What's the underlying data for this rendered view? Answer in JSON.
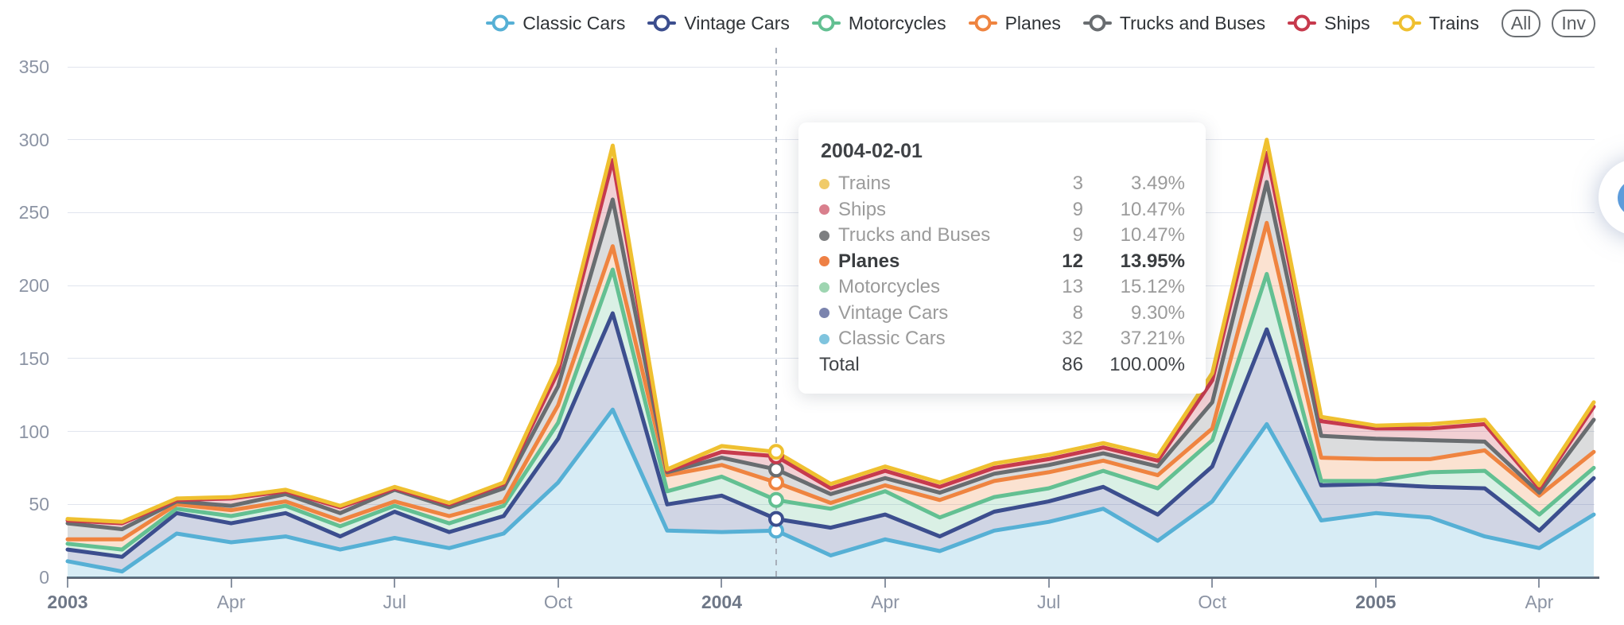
{
  "legend": {
    "all_button": "All",
    "inv_button": "Inv"
  },
  "y_axis": {
    "tick_labels": [
      "0",
      "50",
      "100",
      "150",
      "200",
      "250",
      "300",
      "350"
    ],
    "min": 0,
    "max": 350
  },
  "x_axis": {
    "ticks": [
      {
        "index": 0,
        "label": "2003",
        "bold": true
      },
      {
        "index": 3,
        "label": "Apr",
        "bold": false
      },
      {
        "index": 6,
        "label": "Jul",
        "bold": false
      },
      {
        "index": 9,
        "label": "Oct",
        "bold": false
      },
      {
        "index": 12,
        "label": "2004",
        "bold": true
      },
      {
        "index": 15,
        "label": "Apr",
        "bold": false
      },
      {
        "index": 18,
        "label": "Jul",
        "bold": false
      },
      {
        "index": 21,
        "label": "Oct",
        "bold": false
      },
      {
        "index": 24,
        "label": "2005",
        "bold": true
      },
      {
        "index": 27,
        "label": "Apr",
        "bold": false
      }
    ]
  },
  "chart_data": {
    "type": "area",
    "stacked": true,
    "grid": true,
    "legend_position": "top",
    "title": "",
    "xlabel": "",
    "ylabel": "",
    "ylim": [
      0,
      350
    ],
    "x": [
      "2003-01",
      "2003-02",
      "2003-03",
      "2003-04",
      "2003-05",
      "2003-06",
      "2003-07",
      "2003-08",
      "2003-09",
      "2003-10",
      "2003-11",
      "2003-12",
      "2004-01",
      "2004-02",
      "2004-03",
      "2004-04",
      "2004-05",
      "2004-06",
      "2004-07",
      "2004-08",
      "2004-09",
      "2004-10",
      "2004-11",
      "2004-12",
      "2005-01",
      "2005-02",
      "2005-03",
      "2005-04",
      "2005-05"
    ],
    "series": [
      {
        "name": "Classic Cars",
        "color": "#56b0d5",
        "values": [
          11,
          4,
          30,
          24,
          28,
          19,
          27,
          20,
          30,
          65,
          115,
          32,
          31,
          32,
          15,
          26,
          18,
          32,
          38,
          47,
          25,
          52,
          105,
          39,
          44,
          41,
          28,
          20,
          43
        ]
      },
      {
        "name": "Vintage Cars",
        "color": "#3c4e8e",
        "values": [
          8,
          10,
          14,
          13,
          16,
          9,
          18,
          11,
          12,
          30,
          66,
          18,
          25,
          8,
          19,
          17,
          10,
          13,
          14,
          15,
          18,
          24,
          65,
          24,
          20,
          21,
          33,
          12,
          25
        ]
      },
      {
        "name": "Motorcycles",
        "color": "#63c092",
        "values": [
          4,
          5,
          3,
          5,
          5,
          7,
          4,
          6,
          7,
          11,
          30,
          9,
          13,
          13,
          13,
          16,
          13,
          10,
          9,
          11,
          18,
          18,
          38,
          3,
          2,
          10,
          12,
          11,
          7
        ]
      },
      {
        "name": "Planes",
        "color": "#ef8440",
        "values": [
          3,
          7,
          3,
          4,
          3,
          4,
          3,
          5,
          3,
          12,
          16,
          11,
          8,
          12,
          4,
          4,
          12,
          11,
          11,
          7,
          9,
          8,
          35,
          16,
          15,
          9,
          14,
          13,
          11
        ]
      },
      {
        "name": "Trucks and Buses",
        "color": "#696d70",
        "values": [
          11,
          7,
          2,
          3,
          5,
          5,
          8,
          6,
          9,
          13,
          32,
          2,
          5,
          9,
          6,
          5,
          5,
          5,
          5,
          5,
          6,
          18,
          28,
          15,
          14,
          13,
          6,
          2,
          22
        ]
      },
      {
        "name": "Ships",
        "color": "#c73a4d",
        "values": [
          2,
          4,
          1,
          5,
          2,
          4,
          1,
          2,
          3,
          10,
          27,
          1,
          4,
          9,
          4,
          5,
          4,
          4,
          4,
          4,
          4,
          15,
          20,
          10,
          7,
          8,
          12,
          3,
          9
        ]
      },
      {
        "name": "Trains",
        "color": "#efc030",
        "values": [
          1,
          1,
          1,
          1,
          1,
          1,
          1,
          1,
          1,
          5,
          10,
          1,
          4,
          3,
          3,
          3,
          3,
          3,
          3,
          3,
          3,
          5,
          9,
          3,
          2,
          3,
          3,
          2,
          3
        ]
      }
    ]
  },
  "highlight": {
    "date": "2004-02-01",
    "index": 13
  },
  "tooltip": {
    "date": "2004-02-01",
    "rows": [
      {
        "series": "Trains",
        "color": "#f0cb69",
        "value": "3",
        "percent": "3.49%",
        "bold": false,
        "total": false
      },
      {
        "series": "Ships",
        "color": "#d97f8d",
        "value": "9",
        "percent": "10.47%",
        "bold": false,
        "total": false
      },
      {
        "series": "Trucks and Buses",
        "color": "#7d7f81",
        "value": "9",
        "percent": "10.47%",
        "bold": false,
        "total": false
      },
      {
        "series": "Planes",
        "color": "#ee8045",
        "value": "12",
        "percent": "13.95%",
        "bold": true,
        "total": false
      },
      {
        "series": "Motorcycles",
        "color": "#9ed5b1",
        "value": "13",
        "percent": "15.12%",
        "bold": false,
        "total": false
      },
      {
        "series": "Vintage Cars",
        "color": "#7b84ae",
        "value": "8",
        "percent": "9.30%",
        "bold": false,
        "total": false
      },
      {
        "series": "Classic Cars",
        "color": "#7fc4de",
        "value": "32",
        "percent": "37.21%",
        "bold": false,
        "total": false
      },
      {
        "series": "Total",
        "color": "",
        "value": "86",
        "percent": "100.00%",
        "bold": false,
        "total": true
      }
    ]
  },
  "style": {
    "axis_line_color": "#5e6876",
    "gridline_color": "#e1e5ee",
    "dashed_line_color": "#a7aeb9",
    "area_opacity": 0.24
  }
}
